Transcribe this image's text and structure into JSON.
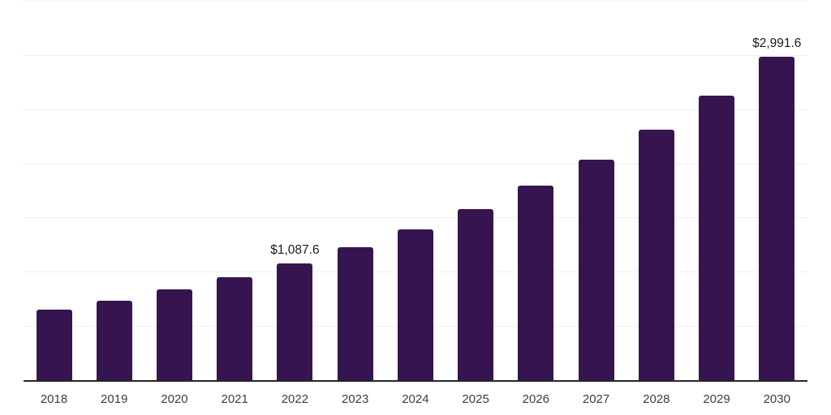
{
  "chart_data": {
    "type": "bar",
    "title": "",
    "xlabel": "",
    "ylabel": "",
    "legend": "none",
    "grid": "horizontal",
    "categories": [
      "2018",
      "2019",
      "2020",
      "2021",
      "2022",
      "2023",
      "2024",
      "2025",
      "2026",
      "2027",
      "2028",
      "2029",
      "2030"
    ],
    "values": [
      658,
      743,
      845,
      956,
      1087.6,
      1232,
      1399,
      1585,
      1800,
      2043,
      2322,
      2633,
      2991.6
    ],
    "value_labels": [
      "",
      "",
      "",
      "",
      "$1,087.6",
      "",
      "",
      "",
      "",
      "",
      "",
      "",
      "$2,991.6"
    ],
    "ylim": [
      0,
      3500
    ],
    "gridline_step": 500,
    "colors": {
      "bar": "#351450",
      "axis_line": "#262626",
      "gridline": "#efefef",
      "tick_label": "#3d3d3d",
      "value_label": "#1a1a1a",
      "background": "#ffffff"
    }
  }
}
